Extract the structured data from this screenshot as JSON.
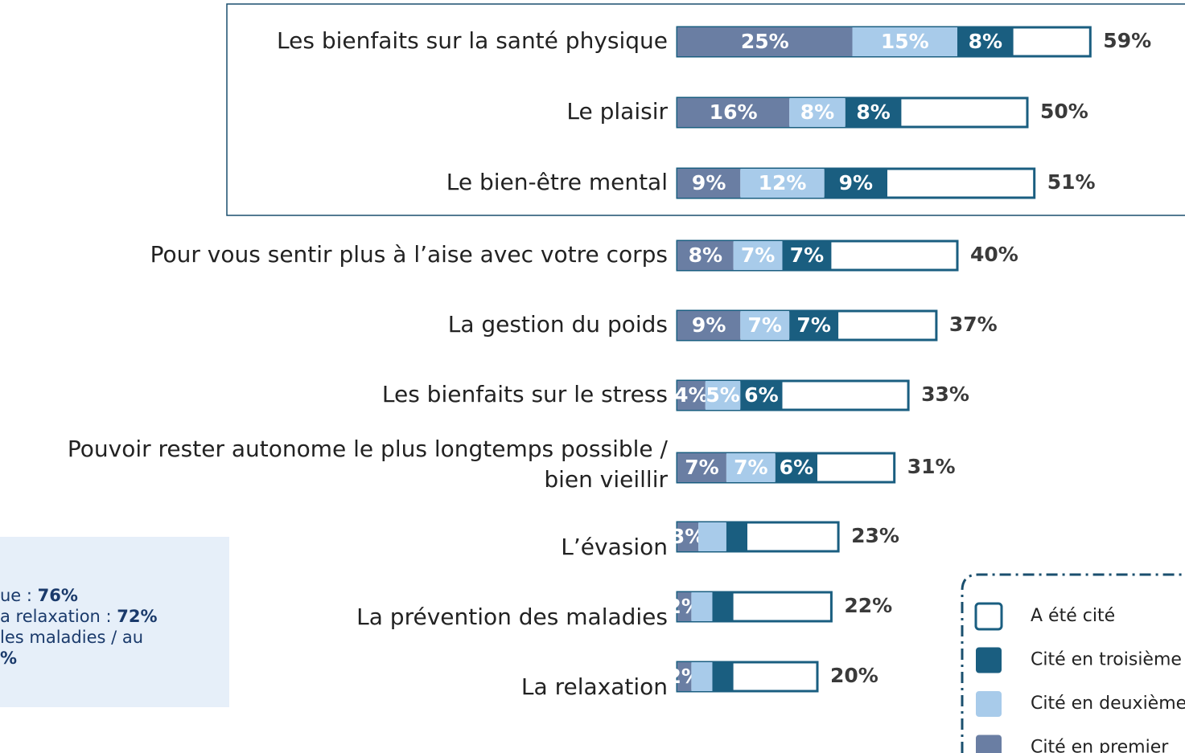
{
  "chart_data": {
    "type": "stacked-bar-horizontal",
    "categories": [
      "Les bienfaits sur la santé physique",
      "Le plaisir",
      "Le bien-être mental",
      "Pour vous sentir plus à l’aise avec votre corps",
      "La gestion du poids",
      "Les bienfaits sur le stress",
      [
        "Pouvoir rester autonome le plus longtemps possible /",
        "bien vieillir"
      ],
      "L’évasion",
      "La prévention des maladies",
      "La relaxation"
    ],
    "series": [
      {
        "name": "Cité en premier",
        "color": "#6a7ea3",
        "values": [
          25,
          16,
          9,
          8,
          9,
          4,
          7,
          3,
          2,
          2
        ],
        "value_labels": [
          "25%",
          "16%",
          "9%",
          "8%",
          "9%",
          "4%",
          "7%",
          "3%",
          "2%",
          "2%"
        ]
      },
      {
        "name": "Cité en deuxième",
        "color": "#a8cbea",
        "values": [
          15,
          8,
          12,
          7,
          7,
          5,
          7,
          4,
          3,
          3
        ],
        "value_labels": [
          "15%",
          "8%",
          "12%",
          "7%",
          "7%",
          "5%",
          "7%",
          null,
          null,
          null
        ]
      },
      {
        "name": "Cité en troisième",
        "color": "#1a5e80",
        "values": [
          8,
          8,
          9,
          7,
          7,
          6,
          6,
          3,
          3,
          3
        ],
        "value_labels": [
          "8%",
          "8%",
          "9%",
          "7%",
          "7%",
          "6%",
          "6%",
          null,
          null,
          null
        ]
      },
      {
        "name": "A été cité",
        "color": "#ffffff",
        "values": [
          59,
          50,
          51,
          40,
          37,
          33,
          31,
          23,
          22,
          20
        ],
        "value_labels": [
          "59%",
          "50%",
          "51%",
          "40%",
          "37%",
          "33%",
          "31%",
          "23%",
          "22%",
          "20%"
        ]
      }
    ],
    "notes": [
      {
        "text": "ue : ",
        "bold": "76%"
      },
      {
        "text": "a relaxation : ",
        "bold": "72%"
      },
      {
        "text": "les maladies / au",
        "bold": null
      },
      {
        "text": "",
        "bold": "%"
      }
    ]
  }
}
